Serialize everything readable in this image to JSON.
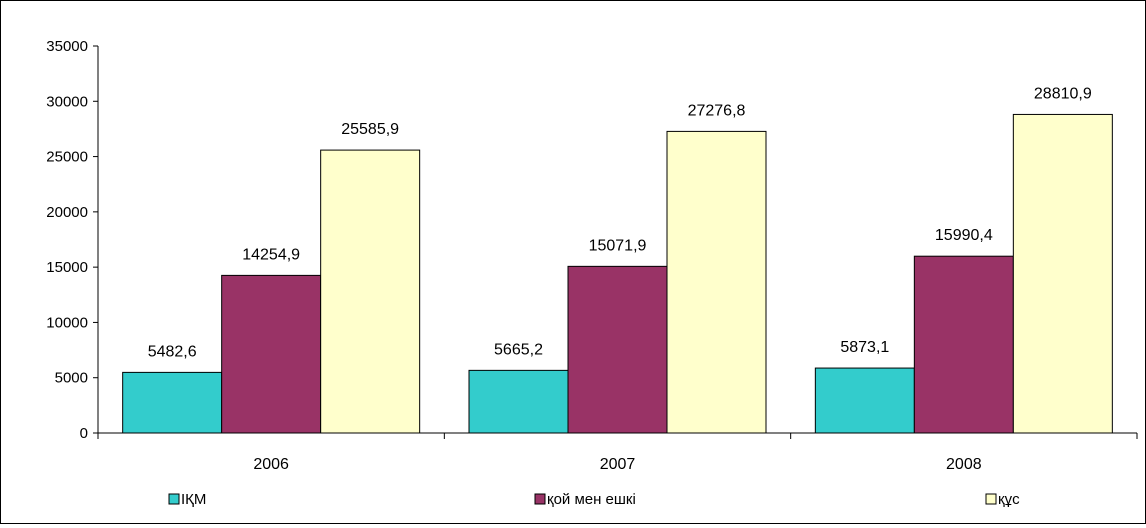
{
  "chart_data": {
    "type": "bar",
    "title": "",
    "xlabel": "",
    "ylabel": "",
    "categories": [
      "2006",
      "2007",
      "2008"
    ],
    "series": [
      {
        "name": "ІҚМ",
        "values": [
          5482.6,
          5665.2,
          5873.1
        ],
        "labels": [
          "5482,6",
          "5665,2",
          "5873,1"
        ],
        "color": "#33CCCC"
      },
      {
        "name": "қой мен ешкі",
        "values": [
          14254.9,
          15071.9,
          15990.4
        ],
        "labels": [
          "14254,9",
          "15071,9",
          "15990,4"
        ],
        "color": "#993366"
      },
      {
        "name": "құс",
        "values": [
          25585.9,
          27276.8,
          28810.9
        ],
        "labels": [
          "25585,9",
          "27276,8",
          "28810,9"
        ],
        "color": "#FFFFCC"
      }
    ],
    "ylim": [
      0,
      35000
    ],
    "yticks": [
      0,
      5000,
      10000,
      15000,
      20000,
      25000,
      30000,
      35000
    ],
    "grid": false,
    "legend_position": "bottom"
  }
}
